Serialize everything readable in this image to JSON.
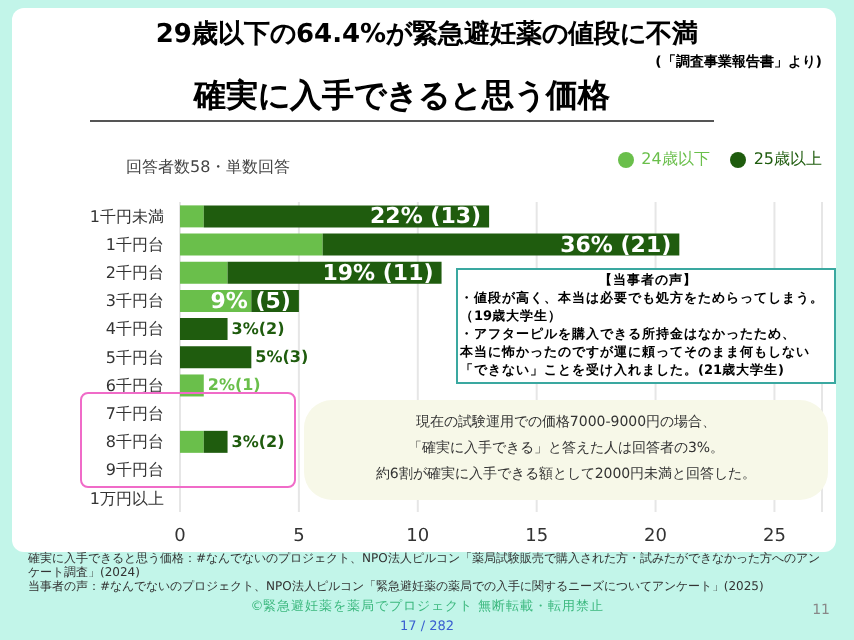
{
  "chart_data": {
    "type": "bar",
    "orientation": "horizontal",
    "stacked": true,
    "title": "29歳以下の64.4%が緊急避妊薬の値段に不満",
    "subtitle": "確実に入手できると思う価格",
    "categories": [
      "1千円未満",
      "1千円台",
      "2千円台",
      "3千円台",
      "4千円台",
      "5千円台",
      "6千円台",
      "7千円台",
      "8千円台",
      "9千円台",
      "1万円以上"
    ],
    "series": [
      {
        "name": "24歳以下",
        "color": "#6abf4b",
        "values": [
          1,
          6,
          2,
          3,
          0,
          0,
          1,
          0,
          1,
          0,
          0
        ]
      },
      {
        "name": "25歳以上",
        "color": "#1f5c0e",
        "values": [
          12,
          15,
          9,
          2,
          2,
          3,
          0,
          0,
          1,
          0,
          0
        ]
      }
    ],
    "totals": [
      "22% (13)",
      "36% (21)",
      "19% (11)",
      "9% (5)",
      "3%(2)",
      "5%(3)",
      "2%(1)",
      null,
      "3%(2)",
      null,
      null
    ],
    "xlim": [
      0,
      27
    ],
    "xticks": [
      0,
      5,
      10,
      15,
      20,
      25
    ],
    "grid": "x",
    "legend": "top right",
    "annotations": [
      "(「調査事業報告書」より)",
      "回答者数58・単数回答",
      "【当事者の声】",
      "・値段が高く、本当は必要でも処方をためらってしまう。",
      "（19歳大学生）",
      "・アフターピルを購入できる所持金はなかったため、",
      "本当に怖かったのですが運に頼ってそのまま何もしない",
      "「できない」ことを受け入れました。(21歳大学生)",
      "現在の試験運用での価格7000-9000円の場合、",
      "「確実に入手できる」と答えた人は回答者の3%。",
      "約6割が確実に入手できる額として2000円未満と回答した。",
      "確実に入手できると思う価格：#なんでないのプロジェクト、NPO法人ピルコン「薬局試験販売で購入された方・試みたができなかった方へのアンケート調査」(2024)",
      "当事者の声：#なんでないのプロジェクト、NPO法人ピルコン「緊急避妊薬の薬局での入手に関するニーズについてアンケート」(2025)",
      "©緊急避妊薬を薬局でプロジェクト 無断転載・転用禁止",
      "17 / 282",
      "11"
    ]
  }
}
